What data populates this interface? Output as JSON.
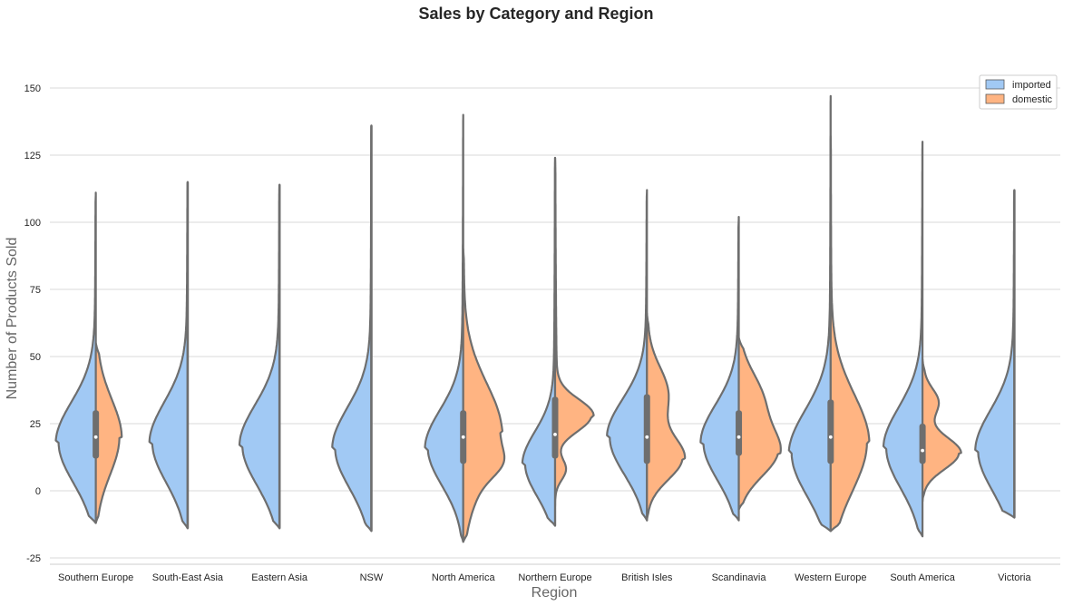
{
  "chart_data": {
    "type": "violin",
    "title": "Sales by Category and Region",
    "xlabel": "Region",
    "ylabel": "Number of Products Sold",
    "ylim": [
      -28,
      165
    ],
    "yticks": [
      -25,
      0,
      25,
      50,
      75,
      100,
      125,
      150
    ],
    "grid": "horizontal",
    "legend_position": "top-right",
    "categories": [
      "Southern Europe",
      "South-East Asia",
      "Eastern Asia",
      "NSW",
      "North America",
      "Northern Europe",
      "British Isles",
      "Scandinavia",
      "Western Europe",
      "South America",
      "Victoria"
    ],
    "series": [
      {
        "name": "imported",
        "color": "#a1c9f4",
        "extent": [
          [
            -12,
            111
          ],
          [
            -14,
            115
          ],
          [
            -14,
            114
          ],
          [
            -15,
            136
          ],
          [
            -19,
            140
          ],
          [
            -13,
            124
          ],
          [
            -11,
            112
          ],
          [
            -11,
            102
          ],
          [
            -15,
            147
          ],
          [
            -17,
            130
          ],
          [
            -10,
            112
          ]
        ],
        "peak": [
          18,
          18,
          17,
          16,
          16,
          10,
          20,
          18,
          14,
          16,
          15
        ],
        "width": [
          41,
          39,
          41,
          40,
          39,
          33,
          41,
          39,
          43,
          40,
          40
        ],
        "spread": [
          15,
          15,
          15,
          15,
          14,
          12,
          14,
          14,
          16,
          15,
          15
        ]
      },
      {
        "name": "domestic",
        "color": "#ffb482",
        "extent": [
          [
            -12,
            55
          ],
          null,
          null,
          null,
          [
            -19,
            90
          ],
          [
            -13,
            124
          ],
          [
            -11,
            66
          ],
          [
            -7,
            57
          ],
          [
            -15,
            132
          ],
          [
            -4,
            49
          ]
        ],
        "modes": [
          [
            [
              20,
              26,
              14
            ]
          ],
          null,
          null,
          null,
          [
            [
              22,
              40,
              18
            ],
            [
              10,
              12,
              5
            ]
          ],
          [
            [
              28,
              40,
              6
            ],
            [
              8,
              12,
              4
            ]
          ],
          [
            [
              12,
              38,
              8
            ],
            [
              36,
              22,
              10
            ]
          ],
          [
            [
              14,
              40,
              9
            ],
            [
              34,
              24,
              10
            ]
          ],
          [
            [
              18,
              40,
              18
            ]
          ],
          [
            [
              14,
              40,
              6
            ],
            [
              33,
              16,
              5
            ]
          ]
        ]
      }
    ],
    "boxes": [
      {
        "q1": 12,
        "q3": 30,
        "median": 20
      },
      null,
      null,
      null,
      {
        "q1": 10,
        "q3": 30,
        "median": 20
      },
      {
        "q1": 12,
        "q3": 35,
        "median": 21
      },
      {
        "q1": 10,
        "q3": 36,
        "median": 20
      },
      {
        "q1": 13,
        "q3": 30,
        "median": 20
      },
      {
        "q1": 10,
        "q3": 34,
        "median": 20
      },
      {
        "q1": 10,
        "q3": 25,
        "median": 15
      },
      null
    ]
  }
}
